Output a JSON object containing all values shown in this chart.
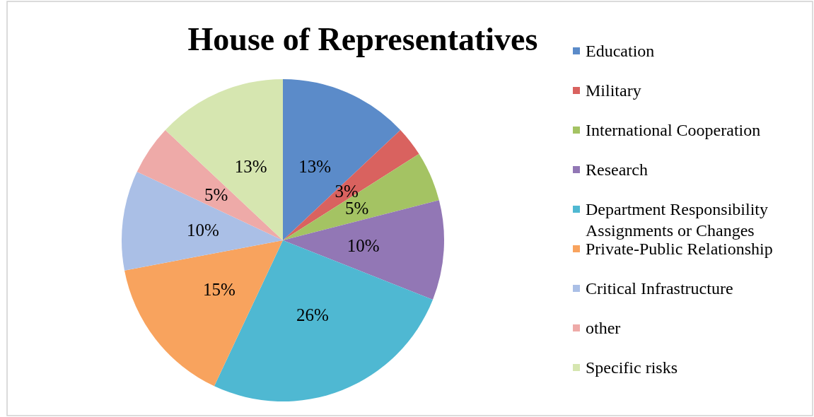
{
  "chart_data": {
    "type": "pie",
    "title": "House of Representatives",
    "categories": [
      "Education",
      "Military",
      "International Cooperation",
      "Research",
      "Department Responsibility Assignments or Changes",
      "Private-Public Relationship",
      "Critical Infrastructure",
      "other",
      "Specific risks"
    ],
    "values": [
      13,
      3,
      5,
      10,
      26,
      15,
      10,
      5,
      13
    ],
    "colors": [
      "#5b8bc9",
      "#d9625f",
      "#a4c363",
      "#9277b5",
      "#4fb8d2",
      "#f8a35e",
      "#aabfe6",
      "#eeaaa8",
      "#d6e6b0"
    ],
    "value_labels": [
      "13%",
      "3%",
      "5%",
      "10%",
      "26%",
      "15%",
      "10%",
      "5%",
      "13%"
    ],
    "legend": "right"
  }
}
